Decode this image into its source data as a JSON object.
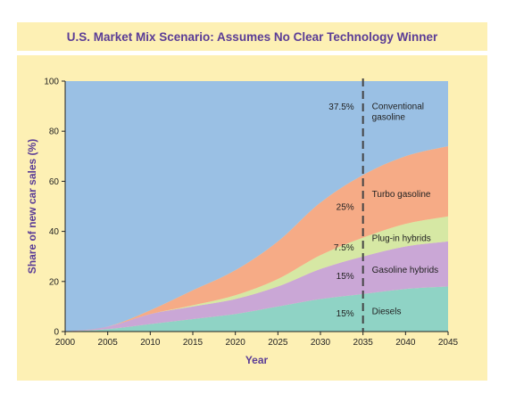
{
  "chart_data": {
    "type": "area",
    "title": "U.S. Market Mix Scenario: Assumes No Clear Technology Winner",
    "xlabel": "Year",
    "ylabel": "Share of new car sales (%)",
    "xlim": [
      2000,
      2045
    ],
    "ylim": [
      0,
      100
    ],
    "x_ticks": [
      "2000",
      "2005",
      "2010",
      "2015",
      "2020",
      "2025",
      "2030",
      "2035",
      "2040",
      "2045"
    ],
    "y_ticks": [
      "0",
      "20",
      "40",
      "60",
      "80",
      "100"
    ],
    "x": [
      2000,
      2005,
      2010,
      2015,
      2020,
      2025,
      2030,
      2035,
      2040,
      2045
    ],
    "stacking": "cumulative",
    "series": [
      {
        "name": "Diesels",
        "color": "#8fd3c5",
        "values": [
          0,
          1,
          3,
          5,
          7,
          10,
          13,
          15,
          17,
          18
        ]
      },
      {
        "name": "Gasoline hybrids",
        "color": "#caa7d6",
        "values": [
          0,
          1,
          4,
          5,
          6,
          8,
          12,
          15,
          17,
          18
        ]
      },
      {
        "name": "Plug-in hybrids",
        "color": "#d6e8a4",
        "values": [
          0,
          0,
          0,
          0.5,
          1.5,
          3,
          5.5,
          7.5,
          9,
          10
        ]
      },
      {
        "name": "Turbo gasoline",
        "color": "#f6ab86",
        "values": [
          0,
          0,
          1.5,
          6,
          10,
          15,
          21,
          25,
          27,
          28
        ]
      },
      {
        "name": "Conventional gasoline",
        "color": "#9ac0e4",
        "values": [
          100,
          98,
          91.5,
          83.5,
          75.5,
          64,
          48.5,
          37.5,
          30,
          26
        ]
      }
    ],
    "marker": {
      "x": 2035,
      "style": "dashed"
    },
    "annotations": [
      {
        "text": "37.5%",
        "series": "Conventional gasoline"
      },
      {
        "text": "25%",
        "series": "Turbo gasoline"
      },
      {
        "text": "7.5%",
        "series": "Plug-in hybrids"
      },
      {
        "text": "15%",
        "series": "Gasoline hybrids"
      },
      {
        "text": "15%",
        "series": "Diesels"
      }
    ],
    "right_labels": [
      {
        "lines": [
          "Conventional",
          "gasoline"
        ],
        "series": "Conventional gasoline"
      },
      {
        "lines": [
          "Turbo gasoline"
        ],
        "series": "Turbo gasoline"
      },
      {
        "lines": [
          "Plug-in hybrids"
        ],
        "series": "Plug-in hybrids"
      },
      {
        "lines": [
          "Gasoline hybrids"
        ],
        "series": "Gasoline hybrids"
      },
      {
        "lines": [
          "Diesels"
        ],
        "series": "Diesels"
      }
    ],
    "grid": false,
    "legend": "none"
  },
  "colors": {
    "background": "#fdf0b4",
    "title": "#5a3c96",
    "axis": "#222222",
    "label": "#5a3c96",
    "marker": "#444444"
  }
}
